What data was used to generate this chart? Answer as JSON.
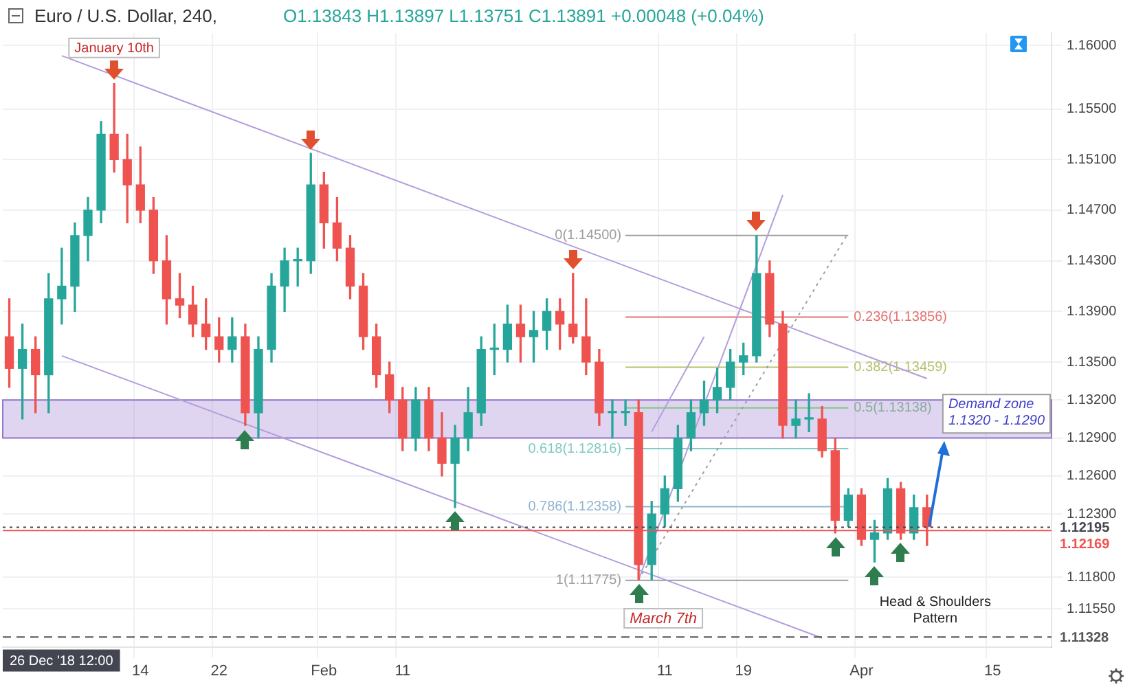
{
  "chart_data": {
    "type": "candlestick",
    "title": "Euro / U.S. Dollar, 240,",
    "subtitle": "O1.13843 H1.13897 L1.13751 C1.13891 +0.00048 (+0.04%)",
    "categories": [
      null,
      null,
      null,
      null,
      null,
      null,
      null,
      null,
      null,
      null,
      "14",
      null,
      null,
      null,
      null,
      null,
      "22",
      null,
      null,
      null,
      null,
      null,
      null,
      null,
      "Feb",
      null,
      null,
      null,
      null,
      null,
      "11",
      null,
      null,
      null,
      null,
      null,
      null,
      null,
      null,
      null,
      null,
      null,
      null,
      null,
      null,
      null,
      null,
      null,
      null,
      null,
      "11",
      null,
      null,
      null,
      null,
      null,
      "19",
      null,
      null,
      null,
      null,
      null,
      null,
      null,
      null,
      "Apr",
      null,
      null,
      null,
      null,
      null,
      null,
      null,
      null,
      null,
      "15",
      null,
      null,
      null,
      null
    ],
    "ohlc": [
      [
        1.137,
        1.14,
        1.133,
        1.1345
      ],
      [
        1.1345,
        1.138,
        1.1305,
        1.136
      ],
      [
        1.136,
        1.137,
        1.131,
        1.134
      ],
      [
        1.134,
        1.142,
        1.131,
        1.14
      ],
      [
        1.14,
        1.144,
        1.138,
        1.141
      ],
      [
        1.141,
        1.146,
        1.139,
        1.145
      ],
      [
        1.145,
        1.148,
        1.143,
        1.147
      ],
      [
        1.147,
        1.154,
        1.146,
        1.153
      ],
      [
        1.153,
        1.157,
        1.15,
        1.151
      ],
      [
        1.151,
        1.153,
        1.146,
        1.149
      ],
      [
        1.149,
        1.152,
        1.146,
        1.147
      ],
      [
        1.147,
        1.148,
        1.142,
        1.143
      ],
      [
        1.143,
        1.145,
        1.138,
        1.14
      ],
      [
        1.14,
        1.142,
        1.1385,
        1.1395
      ],
      [
        1.1395,
        1.141,
        1.137,
        1.138
      ],
      [
        1.138,
        1.14,
        1.136,
        1.137
      ],
      [
        1.137,
        1.1385,
        1.135,
        1.136
      ],
      [
        1.136,
        1.1385,
        1.135,
        1.137
      ],
      [
        1.137,
        1.138,
        1.13,
        1.131
      ],
      [
        1.131,
        1.137,
        1.129,
        1.136
      ],
      [
        1.136,
        1.142,
        1.135,
        1.141
      ],
      [
        1.141,
        1.144,
        1.139,
        1.143
      ],
      [
        1.143,
        1.144,
        1.141,
        1.143
      ],
      [
        1.143,
        1.1515,
        1.142,
        1.149
      ],
      [
        1.149,
        1.15,
        1.144,
        1.146
      ],
      [
        1.146,
        1.148,
        1.143,
        1.144
      ],
      [
        1.144,
        1.145,
        1.14,
        1.141
      ],
      [
        1.141,
        1.142,
        1.136,
        1.137
      ],
      [
        1.137,
        1.138,
        1.133,
        1.134
      ],
      [
        1.134,
        1.135,
        1.131,
        1.132
      ],
      [
        1.132,
        1.133,
        1.128,
        1.129
      ],
      [
        1.129,
        1.133,
        1.128,
        1.132
      ],
      [
        1.132,
        1.133,
        1.128,
        1.129
      ],
      [
        1.129,
        1.131,
        1.126,
        1.127
      ],
      [
        1.127,
        1.13,
        1.1235,
        1.129
      ],
      [
        1.129,
        1.133,
        1.128,
        1.131
      ],
      [
        1.131,
        1.137,
        1.13,
        1.136
      ],
      [
        1.136,
        1.138,
        1.134,
        1.136
      ],
      [
        1.136,
        1.1395,
        1.135,
        1.138
      ],
      [
        1.138,
        1.1395,
        1.135,
        1.137
      ],
      [
        1.137,
        1.139,
        1.135,
        1.1375
      ],
      [
        1.1375,
        1.14,
        1.136,
        1.139
      ],
      [
        1.139,
        1.14,
        1.136,
        1.138
      ],
      [
        1.138,
        1.142,
        1.1365,
        1.137
      ],
      [
        1.137,
        1.14,
        1.134,
        1.135
      ],
      [
        1.135,
        1.136,
        1.13,
        1.131
      ],
      [
        1.131,
        1.132,
        1.129,
        1.131
      ],
      [
        1.131,
        1.132,
        1.13,
        1.131
      ],
      [
        1.131,
        1.132,
        1.1178,
        1.119
      ],
      [
        1.119,
        1.124,
        1.1178,
        1.123
      ],
      [
        1.123,
        1.126,
        1.122,
        1.125
      ],
      [
        1.125,
        1.13,
        1.124,
        1.129
      ],
      [
        1.129,
        1.132,
        1.128,
        1.131
      ],
      [
        1.131,
        1.1335,
        1.13,
        1.132
      ],
      [
        1.132,
        1.1345,
        1.131,
        1.133
      ],
      [
        1.133,
        1.136,
        1.132,
        1.135
      ],
      [
        1.135,
        1.1365,
        1.134,
        1.1355
      ],
      [
        1.1355,
        1.145,
        1.135,
        1.142
      ],
      [
        1.142,
        1.143,
        1.137,
        1.138
      ],
      [
        1.138,
        1.139,
        1.129,
        1.13
      ],
      [
        1.13,
        1.132,
        1.129,
        1.1305
      ],
      [
        1.1305,
        1.1325,
        1.1295,
        1.1305
      ],
      [
        1.1305,
        1.1315,
        1.1275,
        1.128
      ],
      [
        1.128,
        1.129,
        1.1215,
        1.1225
      ],
      [
        1.1225,
        1.125,
        1.122,
        1.1245
      ],
      [
        1.1245,
        1.125,
        1.1205,
        1.121
      ],
      [
        1.121,
        1.1225,
        1.1192,
        1.1215
      ],
      [
        1.1215,
        1.1258,
        1.121,
        1.125
      ],
      [
        1.125,
        1.1255,
        1.121,
        1.1215
      ],
      [
        1.1215,
        1.1245,
        1.121,
        1.1235
      ],
      [
        1.1235,
        1.1245,
        1.1205,
        1.122
      ],
      null,
      null,
      null,
      null,
      null,
      null,
      null,
      null,
      null
    ],
    "series": [
      {
        "type": "line",
        "color": "#b39ddb",
        "line_style": "solid",
        "values": [
          null,
          null,
          null,
          null,
          1.1592,
          null,
          null,
          null,
          null,
          null,
          null,
          null,
          null,
          null,
          null,
          null,
          null,
          null,
          null,
          null,
          null,
          null,
          null,
          null,
          null,
          null,
          null,
          null,
          null,
          null,
          null,
          null,
          null,
          null,
          null,
          null,
          null,
          null,
          null,
          null,
          null,
          null,
          null,
          null,
          null,
          null,
          null,
          null,
          null,
          null,
          null,
          null,
          null,
          null,
          null,
          null,
          null,
          null,
          null,
          null,
          null,
          null,
          null,
          null,
          null,
          null,
          null,
          null,
          null,
          null,
          1.1337,
          null,
          null,
          null,
          null,
          null,
          null,
          null,
          null,
          null
        ]
      },
      {
        "type": "line",
        "color": "#b39ddb",
        "line_style": "solid",
        "values": [
          null,
          null,
          null,
          null,
          1.1355,
          null,
          null,
          null,
          null,
          null,
          null,
          null,
          null,
          null,
          null,
          null,
          null,
          null,
          null,
          null,
          null,
          null,
          null,
          null,
          null,
          null,
          null,
          null,
          null,
          null,
          null,
          null,
          null,
          null,
          null,
          null,
          null,
          null,
          null,
          null,
          null,
          null,
          null,
          null,
          null,
          null,
          null,
          null,
          null,
          null,
          null,
          null,
          null,
          null,
          null,
          null,
          null,
          null,
          null,
          null,
          null,
          null,
          1.1132,
          null,
          null,
          null,
          null,
          null,
          null,
          null,
          null,
          null,
          null,
          null,
          null,
          null,
          null,
          null,
          null,
          null
        ]
      },
      {
        "type": "line",
        "color": "#b39ddb",
        "line_style": "solid",
        "values": [
          null,
          null,
          null,
          null,
          null,
          null,
          null,
          null,
          null,
          null,
          null,
          null,
          null,
          null,
          null,
          null,
          null,
          null,
          null,
          null,
          null,
          null,
          null,
          null,
          null,
          null,
          null,
          null,
          null,
          null,
          null,
          null,
          null,
          null,
          null,
          null,
          null,
          null,
          null,
          null,
          null,
          null,
          null,
          null,
          null,
          null,
          null,
          null,
          1.1178,
          null,
          null,
          null,
          null,
          null,
          null,
          null,
          null,
          null,
          null,
          1.1482,
          null,
          null,
          null,
          null,
          null,
          null,
          null,
          null,
          null,
          null,
          null,
          null,
          null,
          null,
          null,
          null,
          null,
          null,
          null,
          null
        ]
      },
      {
        "type": "line",
        "color": "#b39ddb",
        "line_style": "solid",
        "values": [
          null,
          null,
          null,
          null,
          null,
          null,
          null,
          null,
          null,
          null,
          null,
          null,
          null,
          null,
          null,
          null,
          null,
          null,
          null,
          null,
          null,
          null,
          null,
          null,
          null,
          null,
          null,
          null,
          null,
          null,
          null,
          null,
          null,
          null,
          null,
          null,
          null,
          null,
          null,
          null,
          null,
          null,
          null,
          null,
          null,
          null,
          null,
          null,
          null,
          1.1295,
          null,
          null,
          null,
          1.137,
          null,
          null,
          null,
          null,
          null,
          null,
          null,
          null,
          null,
          null,
          null,
          null,
          null,
          null,
          null,
          null,
          null,
          null,
          null,
          null,
          null,
          null,
          null,
          null,
          null,
          null
        ]
      },
      {
        "type": "line",
        "color": "#9e9e9e",
        "line_style": "dotted",
        "values": [
          null,
          null,
          null,
          null,
          null,
          null,
          null,
          null,
          null,
          null,
          null,
          null,
          null,
          null,
          null,
          null,
          null,
          null,
          null,
          null,
          null,
          null,
          null,
          null,
          null,
          null,
          null,
          null,
          null,
          null,
          null,
          null,
          null,
          null,
          null,
          null,
          null,
          null,
          null,
          null,
          null,
          null,
          null,
          null,
          null,
          null,
          null,
          null,
          1.1178,
          null,
          null,
          null,
          null,
          null,
          null,
          null,
          null,
          null,
          null,
          null,
          null,
          null,
          null,
          null,
          1.1452,
          null,
          null,
          null,
          null,
          null,
          null,
          null,
          null,
          null,
          null,
          null,
          null,
          null,
          null,
          null
        ]
      },
      {
        "type": "line",
        "name": "0(1.14500)",
        "color": "#9e9e9e",
        "line_style": "solid",
        "values": [
          null,
          null,
          null,
          null,
          null,
          null,
          null,
          null,
          null,
          null,
          null,
          null,
          null,
          null,
          null,
          null,
          null,
          null,
          null,
          null,
          null,
          null,
          null,
          null,
          null,
          null,
          null,
          null,
          null,
          null,
          null,
          null,
          null,
          null,
          null,
          null,
          null,
          null,
          null,
          null,
          null,
          null,
          null,
          null,
          null,
          null,
          null,
          1.145,
          1.145,
          1.145,
          1.145,
          1.145,
          1.145,
          1.145,
          1.145,
          1.145,
          1.145,
          1.145,
          1.145,
          1.145,
          1.145,
          1.145,
          1.145,
          1.145,
          1.145,
          null,
          null,
          null,
          null,
          null,
          null,
          null,
          null,
          null,
          null,
          null,
          null,
          null,
          null,
          null
        ]
      },
      {
        "type": "line",
        "name": "0.236(1.13856)",
        "color": "#e57373",
        "line_style": "solid",
        "values": [
          null,
          null,
          null,
          null,
          null,
          null,
          null,
          null,
          null,
          null,
          null,
          null,
          null,
          null,
          null,
          null,
          null,
          null,
          null,
          null,
          null,
          null,
          null,
          null,
          null,
          null,
          null,
          null,
          null,
          null,
          null,
          null,
          null,
          null,
          null,
          null,
          null,
          null,
          null,
          null,
          null,
          null,
          null,
          null,
          null,
          null,
          null,
          1.13856,
          1.13856,
          1.13856,
          1.13856,
          1.13856,
          1.13856,
          1.13856,
          1.13856,
          1.13856,
          1.13856,
          1.13856,
          1.13856,
          1.13856,
          1.13856,
          1.13856,
          1.13856,
          1.13856,
          1.13856,
          null,
          null,
          null,
          null,
          null,
          null,
          null,
          null,
          null,
          null,
          null,
          null,
          null,
          null,
          null
        ]
      },
      {
        "type": "line",
        "name": "0.382(1.13459)",
        "color": "#b7c26a",
        "line_style": "solid",
        "values": [
          null,
          null,
          null,
          null,
          null,
          null,
          null,
          null,
          null,
          null,
          null,
          null,
          null,
          null,
          null,
          null,
          null,
          null,
          null,
          null,
          null,
          null,
          null,
          null,
          null,
          null,
          null,
          null,
          null,
          null,
          null,
          null,
          null,
          null,
          null,
          null,
          null,
          null,
          null,
          null,
          null,
          null,
          null,
          null,
          null,
          null,
          null,
          1.13459,
          1.13459,
          1.13459,
          1.13459,
          1.13459,
          1.13459,
          1.13459,
          1.13459,
          1.13459,
          1.13459,
          1.13459,
          1.13459,
          1.13459,
          1.13459,
          1.13459,
          1.13459,
          1.13459,
          1.13459,
          null,
          null,
          null,
          null,
          null,
          null,
          null,
          null,
          null,
          null,
          null,
          null,
          null,
          null,
          null
        ]
      },
      {
        "type": "line",
        "name": "0.5(1.13138)",
        "color": "#81c784",
        "line_style": "solid",
        "values": [
          null,
          null,
          null,
          null,
          null,
          null,
          null,
          null,
          null,
          null,
          null,
          null,
          null,
          null,
          null,
          null,
          null,
          null,
          null,
          null,
          null,
          null,
          null,
          null,
          null,
          null,
          null,
          null,
          null,
          null,
          null,
          null,
          null,
          null,
          null,
          null,
          null,
          null,
          null,
          null,
          null,
          null,
          null,
          null,
          null,
          null,
          null,
          1.13138,
          1.13138,
          1.13138,
          1.13138,
          1.13138,
          1.13138,
          1.13138,
          1.13138,
          1.13138,
          1.13138,
          1.13138,
          1.13138,
          1.13138,
          1.13138,
          1.13138,
          1.13138,
          1.13138,
          1.13138,
          null,
          null,
          null,
          null,
          null,
          null,
          null,
          null,
          null,
          null,
          null,
          null,
          null,
          null,
          null
        ]
      },
      {
        "type": "line",
        "name": "0.618(1.12816)",
        "color": "#80cbc4",
        "line_style": "solid",
        "values": [
          null,
          null,
          null,
          null,
          null,
          null,
          null,
          null,
          null,
          null,
          null,
          null,
          null,
          null,
          null,
          null,
          null,
          null,
          null,
          null,
          null,
          null,
          null,
          null,
          null,
          null,
          null,
          null,
          null,
          null,
          null,
          null,
          null,
          null,
          null,
          null,
          null,
          null,
          null,
          null,
          null,
          null,
          null,
          null,
          null,
          null,
          null,
          1.12816,
          1.12816,
          1.12816,
          1.12816,
          1.12816,
          1.12816,
          1.12816,
          1.12816,
          1.12816,
          1.12816,
          1.12816,
          1.12816,
          1.12816,
          1.12816,
          1.12816,
          1.12816,
          1.12816,
          1.12816,
          null,
          null,
          null,
          null,
          null,
          null,
          null,
          null,
          null,
          null,
          null,
          null,
          null,
          null,
          null
        ]
      },
      {
        "type": "line",
        "name": "0.786(1.12358)",
        "color": "#90b4d0",
        "line_style": "solid",
        "values": [
          null,
          null,
          null,
          null,
          null,
          null,
          null,
          null,
          null,
          null,
          null,
          null,
          null,
          null,
          null,
          null,
          null,
          null,
          null,
          null,
          null,
          null,
          null,
          null,
          null,
          null,
          null,
          null,
          null,
          null,
          null,
          null,
          null,
          null,
          null,
          null,
          null,
          null,
          null,
          null,
          null,
          null,
          null,
          null,
          null,
          null,
          null,
          1.12358,
          1.12358,
          1.12358,
          1.12358,
          1.12358,
          1.12358,
          1.12358,
          1.12358,
          1.12358,
          1.12358,
          1.12358,
          1.12358,
          1.12358,
          1.12358,
          1.12358,
          1.12358,
          1.12358,
          1.12358,
          null,
          null,
          null,
          null,
          null,
          null,
          null,
          null,
          null,
          null,
          null,
          null,
          null,
          null,
          null
        ]
      },
      {
        "type": "line",
        "name": "1(1.11775)",
        "color": "#9e9e9e",
        "line_style": "solid",
        "values": [
          null,
          null,
          null,
          null,
          null,
          null,
          null,
          null,
          null,
          null,
          null,
          null,
          null,
          null,
          null,
          null,
          null,
          null,
          null,
          null,
          null,
          null,
          null,
          null,
          null,
          null,
          null,
          null,
          null,
          null,
          null,
          null,
          null,
          null,
          null,
          null,
          null,
          null,
          null,
          null,
          null,
          null,
          null,
          null,
          null,
          null,
          null,
          1.11775,
          1.11775,
          1.11775,
          1.11775,
          1.11775,
          1.11775,
          1.11775,
          1.11775,
          1.11775,
          1.11775,
          1.11775,
          1.11775,
          1.11775,
          1.11775,
          1.11775,
          1.11775,
          1.11775,
          1.11775,
          null,
          null,
          null,
          null,
          null,
          null,
          null,
          null,
          null,
          null,
          null,
          null,
          null,
          null,
          null
        ]
      }
    ],
    "ylim": [
      1.1125,
      1.161
    ],
    "yticks": [
      {
        "value": 1.16,
        "label": "1.16000"
      },
      {
        "value": 1.155,
        "label": "1.15500"
      },
      {
        "value": 1.151,
        "label": "1.15100"
      },
      {
        "value": 1.147,
        "label": "1.14700"
      },
      {
        "value": 1.143,
        "label": "1.14300"
      },
      {
        "value": 1.139,
        "label": "1.13900"
      },
      {
        "value": 1.135,
        "label": "1.13500"
      },
      {
        "value": 1.132,
        "label": "1.13200"
      },
      {
        "value": 1.129,
        "label": "1.12900"
      },
      {
        "value": 1.126,
        "label": "1.12600"
      },
      {
        "value": 1.123,
        "label": "1.12300"
      },
      {
        "value": 1.118,
        "label": "1.11800"
      },
      {
        "value": 1.1155,
        "label": "1.11550"
      }
    ],
    "ref_lines": [
      {
        "axis": "y",
        "value": 1.12195,
        "label": "1.12195",
        "color": "#434651",
        "line_style": "dotted"
      },
      {
        "axis": "y",
        "value": 1.12169,
        "label": "1.12169",
        "color": "#ef5350",
        "line_style": "solid"
      },
      {
        "axis": "y",
        "value": 1.11328,
        "label": "1.11328",
        "color": "#555555",
        "line_style": "dashed"
      }
    ],
    "bands": [
      {
        "axis": "y",
        "from": 1.129,
        "to": 1.132,
        "label": "Demand zone\n1.1320 - 1.1290",
        "color": "#9575cd"
      }
    ],
    "annotations": [
      "January 10th",
      "March 7th",
      "Head & Shoulders Pattern",
      "26 Dec '18 12:00"
    ],
    "grid": true,
    "legend": false,
    "marker": "none"
  }
}
